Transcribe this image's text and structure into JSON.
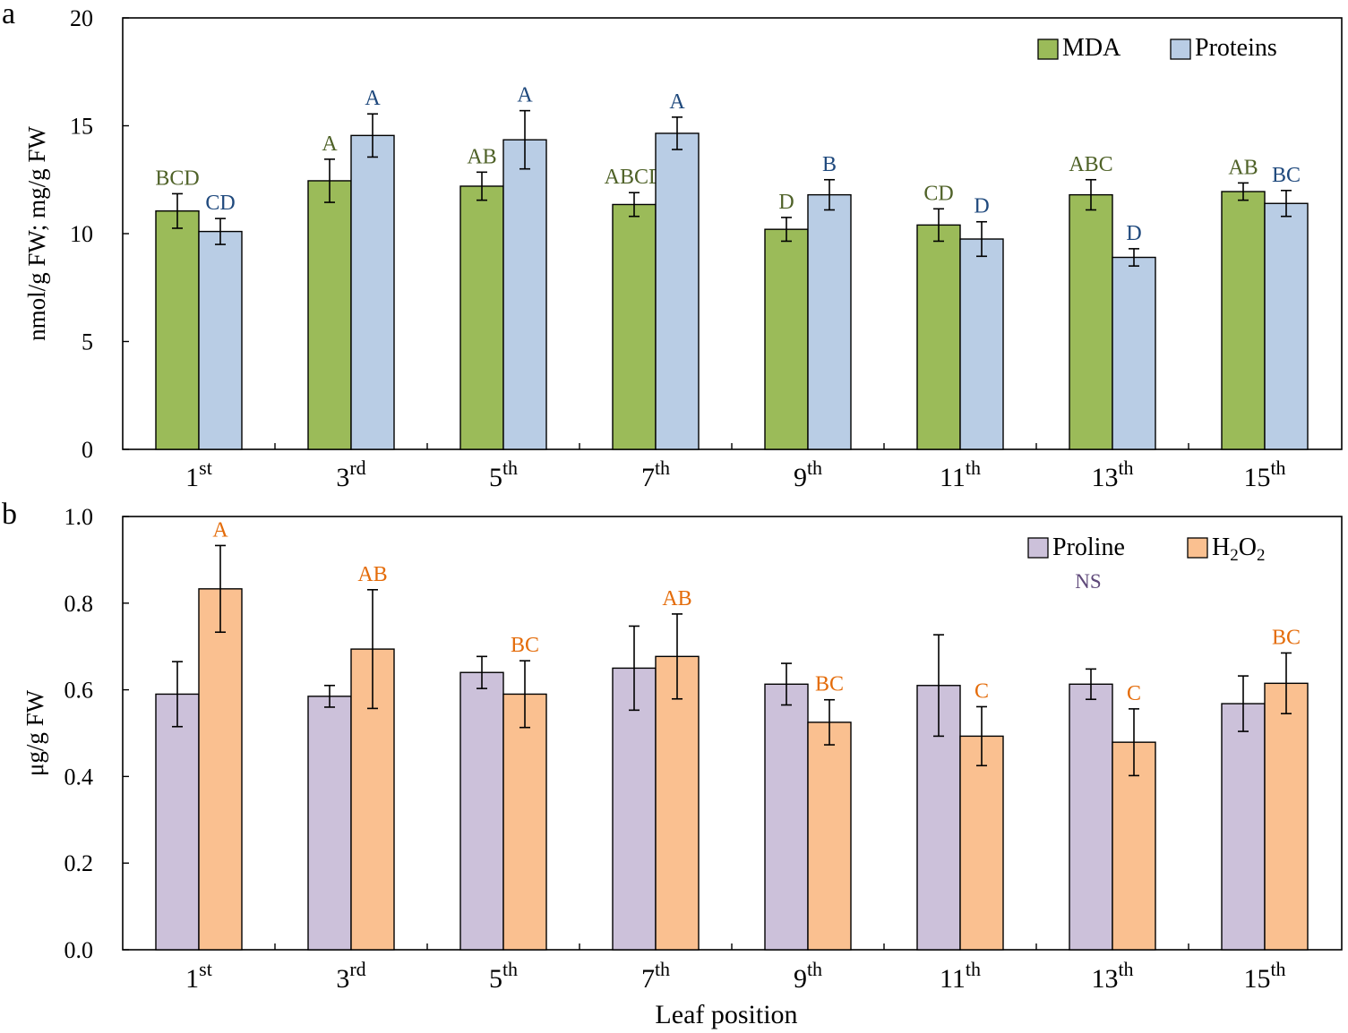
{
  "xlabel": "Leaf position",
  "colors": {
    "mda": "#9bbb59",
    "proteins": "#b9cde5",
    "proline": "#ccc1da",
    "h2o2": "#fac090",
    "mda_letters": "#4f6228",
    "proteins_letters": "#1f497d",
    "proline_letters": "#5f497a",
    "h2o2_letters": "#e46c0a",
    "axis": "#000000"
  },
  "chart_data": [
    {
      "panel": "a",
      "type": "bar",
      "ylabel": "nmol/g FW; mg/g FW",
      "ylim": [
        0,
        20
      ],
      "yticks": [
        "0",
        "5",
        "10",
        "15",
        "20"
      ],
      "legend_position": "top-right",
      "categories": [
        {
          "base": "1",
          "sup": "st"
        },
        {
          "base": "3",
          "sup": "rd"
        },
        {
          "base": "5",
          "sup": "th"
        },
        {
          "base": "7",
          "sup": "th"
        },
        {
          "base": "9",
          "sup": "th"
        },
        {
          "base": "11",
          "sup": "th"
        },
        {
          "base": "13",
          "sup": "th"
        },
        {
          "base": "15",
          "sup": "th"
        }
      ],
      "series": [
        {
          "name": "MDA",
          "color_key": "mda",
          "letter_color_key": "mda_letters",
          "values": [
            11.05,
            12.45,
            12.2,
            11.35,
            10.2,
            10.4,
            11.8,
            11.95
          ],
          "errors": [
            0.8,
            1.0,
            0.65,
            0.55,
            0.55,
            0.75,
            0.7,
            0.4
          ],
          "letters": [
            "BCD",
            "A",
            "AB",
            "ABCD",
            "D",
            "CD",
            "ABC",
            "AB"
          ]
        },
        {
          "name": "Proteins",
          "color_key": "proteins",
          "letter_color_key": "proteins_letters",
          "values": [
            10.1,
            14.55,
            14.35,
            14.65,
            11.8,
            9.75,
            8.9,
            11.4
          ],
          "errors": [
            0.6,
            1.0,
            1.35,
            0.75,
            0.7,
            0.8,
            0.4,
            0.6
          ],
          "letters": [
            "CD",
            "A",
            "A",
            "A",
            "B",
            "D",
            "D",
            "BC"
          ]
        }
      ]
    },
    {
      "panel": "b",
      "type": "bar",
      "ylabel": "μg/g FW",
      "ylim": [
        0,
        1.0
      ],
      "yticks": [
        "0.0",
        "0.2",
        "0.4",
        "0.6",
        "0.8",
        "1.0"
      ],
      "legend_position": "top-right",
      "annotation": "NS",
      "categories": [
        {
          "base": "1",
          "sup": "st"
        },
        {
          "base": "3",
          "sup": "rd"
        },
        {
          "base": "5",
          "sup": "th"
        },
        {
          "base": "7",
          "sup": "th"
        },
        {
          "base": "9",
          "sup": "th"
        },
        {
          "base": "11",
          "sup": "th"
        },
        {
          "base": "13",
          "sup": "th"
        },
        {
          "base": "15",
          "sup": "th"
        }
      ],
      "series": [
        {
          "name": "Proline",
          "color_key": "proline",
          "letter_color_key": "proline_letters",
          "values": [
            0.59,
            0.585,
            0.64,
            0.65,
            0.613,
            0.61,
            0.613,
            0.568
          ],
          "errors": [
            0.075,
            0.025,
            0.037,
            0.097,
            0.048,
            0.117,
            0.035,
            0.064
          ],
          "letters": []
        },
        {
          "name": "H2O2",
          "name_parts": {
            "h": "H",
            "sub1": "2",
            "o": "O",
            "sub2": "2"
          },
          "color_key": "h2o2",
          "letter_color_key": "h2o2_letters",
          "values": [
            0.833,
            0.694,
            0.59,
            0.677,
            0.525,
            0.493,
            0.479,
            0.615
          ],
          "errors": [
            0.1,
            0.137,
            0.077,
            0.098,
            0.052,
            0.068,
            0.077,
            0.07
          ],
          "letters": [
            "A",
            "AB",
            "BC",
            "AB",
            "BC",
            "C",
            "C",
            "BC"
          ]
        }
      ]
    }
  ],
  "panel_labels": [
    "a",
    "b"
  ]
}
